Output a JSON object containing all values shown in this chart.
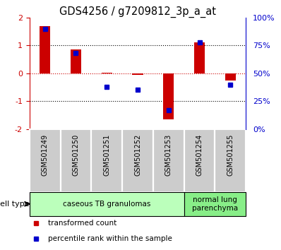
{
  "title": "GDS4256 / g7209812_3p_a_at",
  "samples": [
    "GSM501249",
    "GSM501250",
    "GSM501251",
    "GSM501252",
    "GSM501253",
    "GSM501254",
    "GSM501255"
  ],
  "red_values": [
    1.7,
    0.85,
    0.02,
    -0.05,
    -1.65,
    1.1,
    -0.25
  ],
  "blue_pct": [
    90,
    68,
    38,
    35,
    17,
    78,
    40
  ],
  "ylim": [
    -2,
    2
  ],
  "right_ylim": [
    0,
    100
  ],
  "yticks_left": [
    -2,
    -1,
    0,
    1,
    2
  ],
  "yticks_right": [
    0,
    25,
    50,
    75,
    100
  ],
  "ytick_labels_right": [
    "0%",
    "25%",
    "50%",
    "75%",
    "100%"
  ],
  "hlines_dotted": [
    -1,
    1
  ],
  "red_hline": 0,
  "bar_color": "#cc0000",
  "blue_color": "#0000cc",
  "bar_width": 0.35,
  "blue_marker_size": 5,
  "cell_type_groups": [
    {
      "label": "caseous TB granulomas",
      "indices": [
        0,
        1,
        2,
        3,
        4
      ],
      "color": "#bbffbb"
    },
    {
      "label": "normal lung\nparenchyma",
      "indices": [
        5,
        6
      ],
      "color": "#88ee88"
    }
  ],
  "legend_red": "transformed count",
  "legend_blue": "percentile rank within the sample",
  "cell_type_label": "cell type",
  "tick_label_bg": "#cccccc",
  "axis_color_left": "#cc0000",
  "axis_color_right": "#0000cc"
}
